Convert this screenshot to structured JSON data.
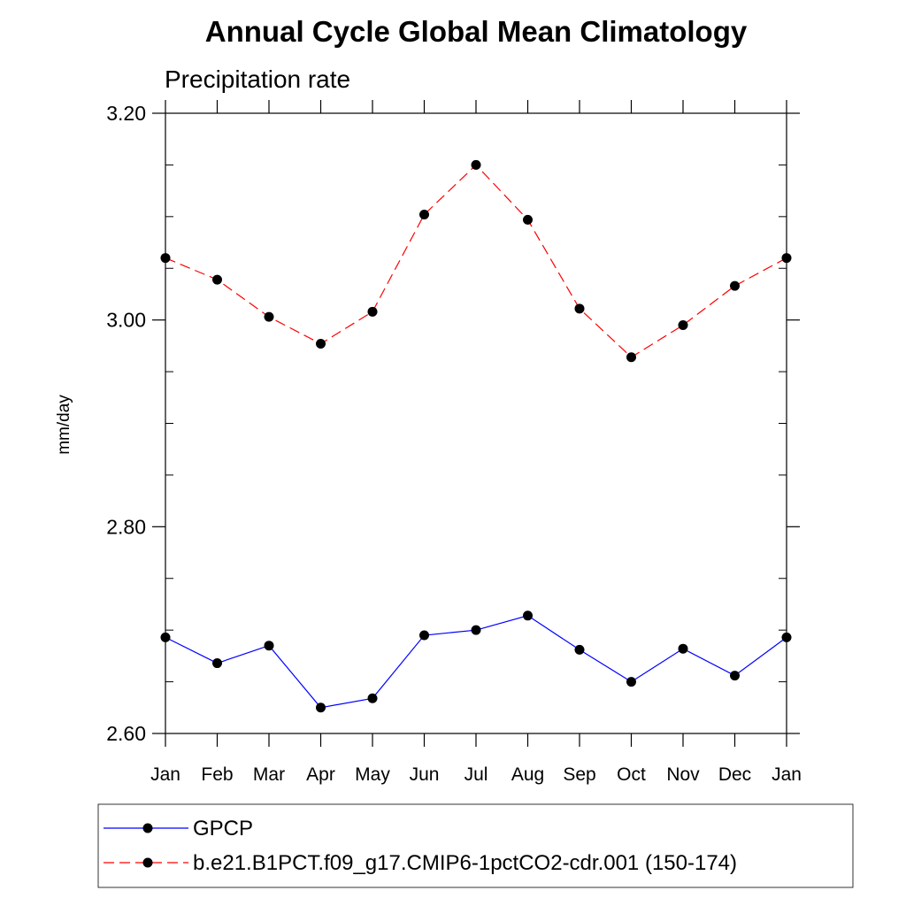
{
  "chart_data": {
    "type": "line",
    "title": "Annual Cycle Global Mean Climatology",
    "subtitle": "Precipitation rate",
    "xlabel": "",
    "ylabel": "mm/day",
    "categories": [
      "Jan",
      "Feb",
      "Mar",
      "Apr",
      "May",
      "Jun",
      "Jul",
      "Aug",
      "Sep",
      "Oct",
      "Nov",
      "Dec",
      "Jan"
    ],
    "ylim": [
      2.6,
      3.2
    ],
    "yticks": [
      2.6,
      2.8,
      3.0,
      3.2
    ],
    "ytick_labels": [
      "2.60",
      "2.80",
      "3.00",
      "3.20"
    ],
    "yminor_step": 0.05,
    "legend_position": "bottom",
    "series": [
      {
        "name": "GPCP",
        "color": "#0000ff",
        "dash": "solid",
        "values": [
          2.693,
          2.668,
          2.685,
          2.625,
          2.634,
          2.695,
          2.7,
          2.714,
          2.681,
          2.65,
          2.682,
          2.656,
          2.693
        ]
      },
      {
        "name": "b.e21.B1PCT.f09_g17.CMIP6-1pctCO2-cdr.001 (150-174)",
        "color": "#ff0000",
        "dash": "dashed",
        "values": [
          3.06,
          3.039,
          3.003,
          2.977,
          3.008,
          3.102,
          3.15,
          3.097,
          3.011,
          2.964,
          2.995,
          3.033,
          3.06
        ]
      }
    ]
  }
}
